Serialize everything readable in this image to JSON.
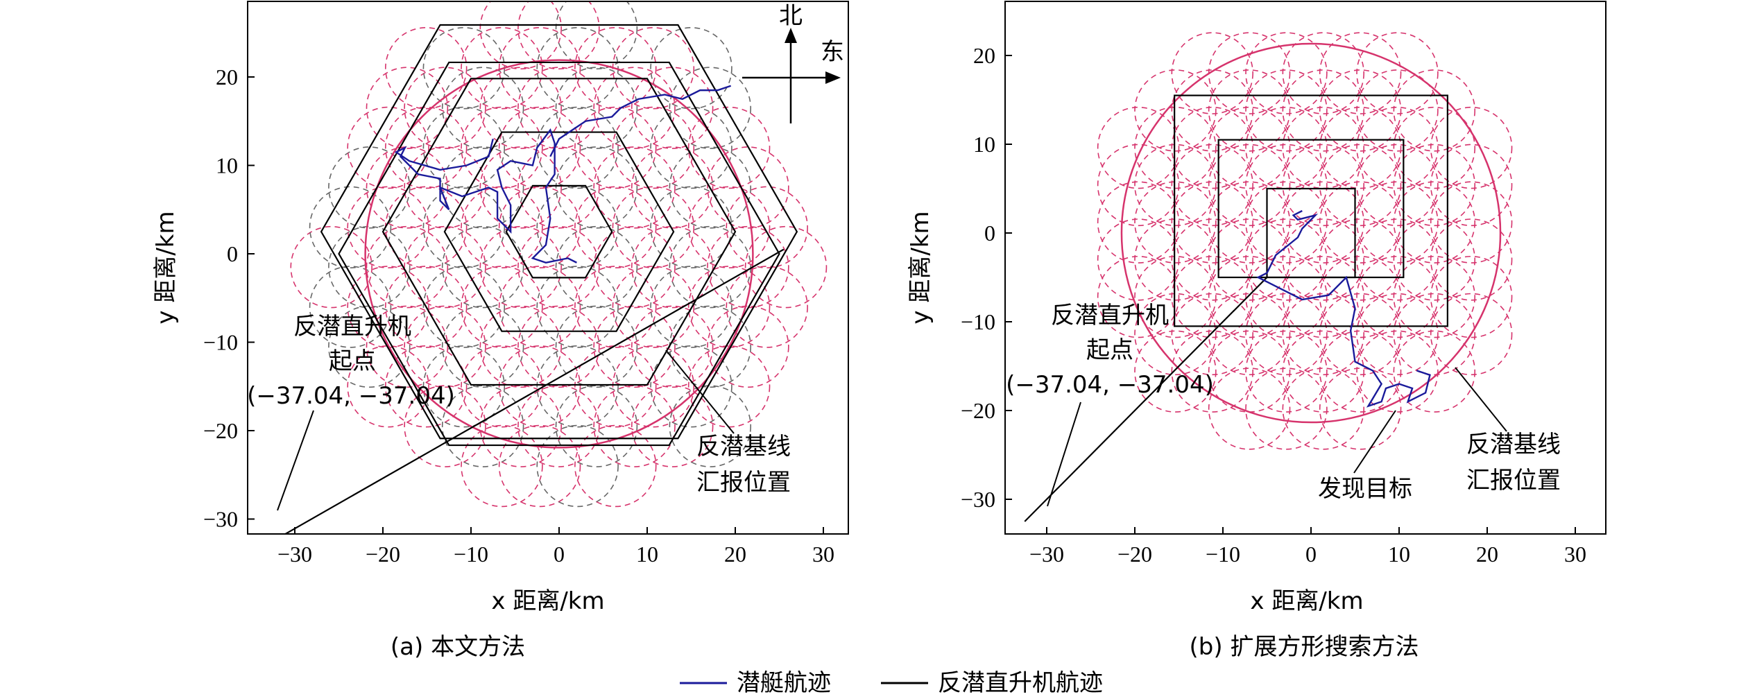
{
  "chart_data": [
    {
      "type": "diagram",
      "caption": "(a)  本文方法",
      "xlabel": "x 距离/km",
      "ylabel": "y 距离/km",
      "xlim": [
        -36,
        33
      ],
      "ylim": [
        -33,
        27
      ],
      "xticks": [
        -30,
        -20,
        -10,
        0,
        10,
        20,
        30
      ],
      "yticks": [
        -30,
        -20,
        -10,
        0,
        10,
        20
      ],
      "compass": {
        "north": "北",
        "east": "东"
      },
      "annotations": {
        "start_line1": "反潜直升机",
        "start_line2": "起点",
        "start_coord": "(−37.04, −37.04)",
        "report_line1": "反潜基线",
        "report_line2": "汇报位置"
      },
      "outer_circle_radius": 22,
      "hexagons": [
        {
          "center": [
            0,
            2.5
          ],
          "radius": 6
        },
        {
          "center": [
            0,
            2.5
          ],
          "radius": 13
        },
        {
          "center": [
            0,
            2.5
          ],
          "radius": 20
        },
        {
          "center": [
            0,
            2.5
          ],
          "radius": 27
        },
        {
          "center": [
            0,
            0
          ],
          "radius": 25
        }
      ],
      "helicopter_start_leg": [
        [
          -32.5,
          -32.5
        ],
        [
          25.5,
          0.5
        ]
      ],
      "submarine_track": [
        [
          -7.5,
          13
        ],
        [
          -8,
          11
        ],
        [
          -10.5,
          10
        ],
        [
          -13.5,
          9.5
        ],
        [
          -17,
          10.5
        ],
        [
          -18.5,
          11.5
        ],
        [
          -17.5,
          12
        ],
        [
          -18,
          11
        ],
        [
          -16,
          9
        ],
        [
          -13.5,
          8.5
        ],
        [
          -13.5,
          6
        ],
        [
          -12.5,
          5
        ],
        [
          -13.5,
          7.5
        ],
        [
          -11,
          6.5
        ],
        [
          -8,
          7.5
        ],
        [
          -7,
          7
        ],
        [
          -7,
          4
        ],
        [
          -5.5,
          2.5
        ],
        [
          -5.5,
          5.5
        ],
        [
          -6.5,
          7.5
        ],
        [
          -7,
          9.5
        ],
        [
          -5.5,
          10.5
        ],
        [
          -3,
          10
        ],
        [
          -2.5,
          12
        ],
        [
          -1,
          14
        ],
        [
          -0.5,
          12.5
        ],
        [
          -0.5,
          9
        ],
        [
          -1.5,
          7.5
        ],
        [
          -1,
          4
        ],
        [
          -1.5,
          1
        ],
        [
          -3,
          -0.5
        ],
        [
          -1.5,
          -1
        ],
        [
          1,
          -0.5
        ],
        [
          2,
          -1
        ]
      ],
      "submarine_track_upper": [
        [
          -1,
          11
        ],
        [
          0,
          13
        ],
        [
          3,
          15
        ],
        [
          6,
          15.5
        ],
        [
          7,
          16.5
        ],
        [
          9,
          17.5
        ],
        [
          12,
          18
        ],
        [
          14,
          17.5
        ],
        [
          16,
          18.5
        ],
        [
          18,
          18.5
        ],
        [
          19.5,
          19
        ]
      ],
      "colors": {
        "helicopter": "#000000",
        "submarine": "#1a1a9a",
        "coverage_red": "#d6336c",
        "coverage_gray": "#666666"
      }
    },
    {
      "type": "diagram",
      "caption": "(b)  扩展方形搜索方法",
      "xlabel": "x 距离/km",
      "ylabel": "y 距离/km",
      "xlim": [
        -36,
        33
      ],
      "ylim": [
        -33,
        27
      ],
      "xticks": [
        -30,
        -20,
        -10,
        0,
        10,
        20,
        30
      ],
      "yticks": [
        -30,
        -20,
        -10,
        0,
        10,
        20
      ],
      "annotations": {
        "start_line1": "反潜直升机",
        "start_line2": "起点",
        "start_coord": "(−37.04, −37.04)",
        "report_line1": "反潜基线",
        "report_line2": "汇报位置",
        "found": "发现目标"
      },
      "outer_circle_radius": 21.5,
      "squares": [
        {
          "xmin": -5,
          "xmax": 5,
          "ymin": -5,
          "ymax": 5
        },
        {
          "xmin": -10.5,
          "xmax": 10.5,
          "ymin": -5,
          "ymax": 10.5
        },
        {
          "xmin": -15.5,
          "xmax": 15.5,
          "ymin": -10.5,
          "ymax": 15.5
        }
      ],
      "helicopter_start_leg": [
        [
          -32.5,
          -32.5
        ],
        [
          -5,
          -5
        ]
      ],
      "submarine_track": [
        [
          -1,
          2.5
        ],
        [
          -2,
          2
        ],
        [
          -1.5,
          1.5
        ],
        [
          0.5,
          2
        ],
        [
          -1,
          0.5
        ],
        [
          -1.5,
          -0.5
        ],
        [
          -4,
          -2.5
        ],
        [
          -5,
          -4.5
        ],
        [
          -6,
          -5
        ],
        [
          -4,
          -6
        ],
        [
          -1,
          -7.5
        ],
        [
          2,
          -7
        ],
        [
          4,
          -5
        ],
        [
          5,
          -8.5
        ],
        [
          4.5,
          -11
        ],
        [
          5,
          -14.5
        ],
        [
          7,
          -15.5
        ],
        [
          8,
          -17
        ],
        [
          6.5,
          -19.5
        ],
        [
          8,
          -19
        ],
        [
          8.5,
          -17.5
        ],
        [
          10,
          -17
        ],
        [
          11.5,
          -17.5
        ],
        [
          11,
          -19
        ],
        [
          13,
          -18
        ],
        [
          13.5,
          -16
        ],
        [
          12,
          -15.5
        ]
      ],
      "colors": {
        "helicopter": "#000000",
        "submarine": "#1a1a9a",
        "coverage_red": "#d6336c",
        "coverage_gray": "#666666"
      }
    }
  ],
  "legend": {
    "submarine": "潜艇航迹",
    "helicopter": "反潜直升机航迹"
  }
}
